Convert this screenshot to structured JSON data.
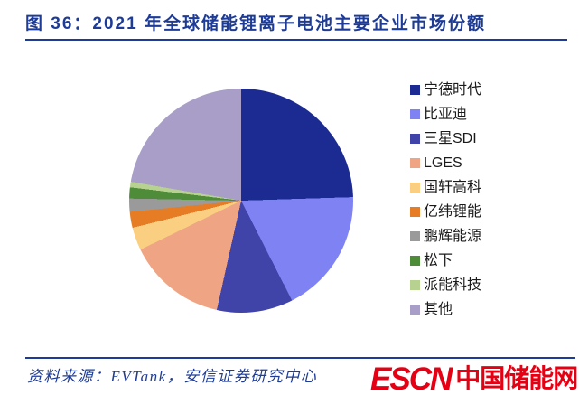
{
  "header": {
    "title": "图 36：2021 年全球储能锂离子电池主要企业市场份额"
  },
  "chart_data": {
    "type": "pie",
    "title": "2021 年全球储能锂离子电池主要企业市场份额",
    "unit": "percent (share of market, estimated from slice angles; no data labels shown)",
    "start_angle_deg": 0,
    "direction": "clockwise",
    "legend_position": "right",
    "series": [
      {
        "name": "宁德时代",
        "value": 24.5,
        "color": "#1B2B92"
      },
      {
        "name": "比亚迪",
        "value": 18.0,
        "color": "#7E82F2"
      },
      {
        "name": "三星SDI",
        "value": 11.0,
        "color": "#4043A7"
      },
      {
        "name": "LGES",
        "value": 14.3,
        "color": "#EFA584"
      },
      {
        "name": "国轩高科",
        "value": 3.3,
        "color": "#FACF82"
      },
      {
        "name": "亿纬锂能",
        "value": 2.3,
        "color": "#E67D25"
      },
      {
        "name": "鹏辉能源",
        "value": 1.9,
        "color": "#9A9A9A"
      },
      {
        "name": "松下",
        "value": 1.6,
        "color": "#4E8C3A"
      },
      {
        "name": "派能科技",
        "value": 0.8,
        "color": "#B7D191"
      },
      {
        "name": "其他",
        "value": 22.3,
        "color": "#A89EC7"
      }
    ]
  },
  "footer": {
    "source": "资料来源：EVTank，安信证券研究中心",
    "logo": {
      "latin": "ESCN",
      "chinese": "中国储能网"
    }
  },
  "colors": {
    "title": "#1E3C96",
    "rule": "#1E3C96",
    "source_text": "#1E3C96",
    "logo_red": "#E60013",
    "legend_text": "#1A1A1A"
  }
}
